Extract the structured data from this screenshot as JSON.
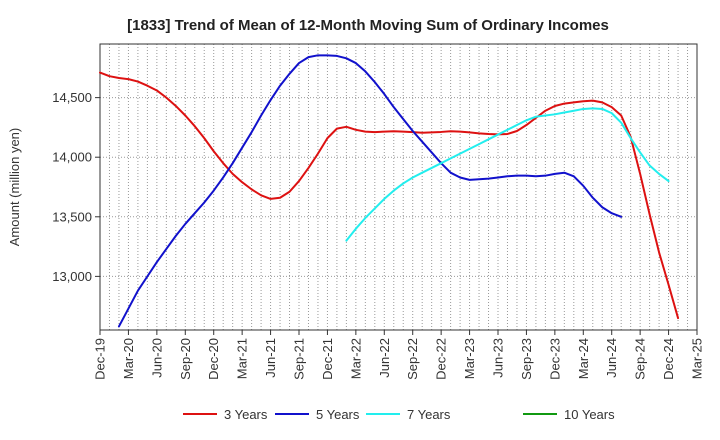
{
  "chart_data": {
    "type": "line",
    "title": "[1833]  Trend of Mean of 12-Month Moving Sum of Ordinary Incomes",
    "xlabel": "",
    "ylabel": "Amount (million yen)",
    "ylim": [
      12550,
      14950
    ],
    "yticks": [
      13000,
      13500,
      14000,
      14500
    ],
    "ytick_labels": [
      "13,000",
      "13,500",
      "14,000",
      "14,500"
    ],
    "xlim": [
      0,
      63
    ],
    "xticks": [
      0,
      3,
      6,
      9,
      12,
      15,
      18,
      21,
      24,
      27,
      30,
      33,
      36,
      39,
      42,
      45,
      48,
      51,
      54,
      57,
      60,
      63
    ],
    "xtick_labels": [
      "Dec-19",
      "Mar-20",
      "Jun-20",
      "Sep-20",
      "Dec-20",
      "Mar-21",
      "Jun-21",
      "Sep-21",
      "Dec-21",
      "Mar-22",
      "Jun-22",
      "Sep-22",
      "Dec-22",
      "Mar-23",
      "Jun-23",
      "Sep-23",
      "Dec-23",
      "Mar-24",
      "Jun-24",
      "Sep-24",
      "Dec-24",
      "Mar-25"
    ],
    "grid": true,
    "legend_position": "bottom",
    "series": [
      {
        "name": "3 Years",
        "color": "#dd1111",
        "start": 0,
        "values": [
          14710,
          14680,
          14665,
          14655,
          14635,
          14600,
          14560,
          14500,
          14430,
          14350,
          14260,
          14160,
          14050,
          13950,
          13860,
          13790,
          13730,
          13680,
          13650,
          13660,
          13710,
          13800,
          13910,
          14030,
          14160,
          14240,
          14255,
          14230,
          14215,
          14210,
          14215,
          14218,
          14215,
          14210,
          14205,
          14208,
          14212,
          14218,
          14215,
          14208,
          14200,
          14195,
          14192,
          14195,
          14220,
          14270,
          14330,
          14390,
          14430,
          14450,
          14460,
          14470,
          14475,
          14460,
          14420,
          14350,
          14170,
          13860,
          13520,
          13200,
          12930,
          12650
        ]
      },
      {
        "name": "5 Years",
        "color": "#1111cc",
        "start": 2,
        "values": [
          12580,
          12730,
          12880,
          13000,
          13120,
          13230,
          13340,
          13440,
          13530,
          13620,
          13720,
          13830,
          13950,
          14080,
          14210,
          14350,
          14480,
          14600,
          14700,
          14790,
          14840,
          14855,
          14855,
          14850,
          14830,
          14790,
          14720,
          14630,
          14530,
          14420,
          14320,
          14220,
          14130,
          14040,
          13950,
          13870,
          13830,
          13810,
          13815,
          13820,
          13830,
          13840,
          13845,
          13845,
          13840,
          13845,
          13860,
          13870,
          13840,
          13760,
          13660,
          13580,
          13530,
          13500
        ]
      },
      {
        "name": "7 Years",
        "color": "#22eeee",
        "start": 26,
        "values": [
          13300,
          13400,
          13490,
          13570,
          13650,
          13720,
          13780,
          13830,
          13870,
          13910,
          13950,
          13990,
          14030,
          14070,
          14110,
          14150,
          14190,
          14230,
          14270,
          14310,
          14340,
          14350,
          14360,
          14375,
          14390,
          14405,
          14410,
          14405,
          14370,
          14290,
          14160,
          14040,
          13930,
          13860,
          13800
        ]
      },
      {
        "name": "10 Years",
        "color": "#119911",
        "start": 0,
        "values": []
      }
    ]
  }
}
